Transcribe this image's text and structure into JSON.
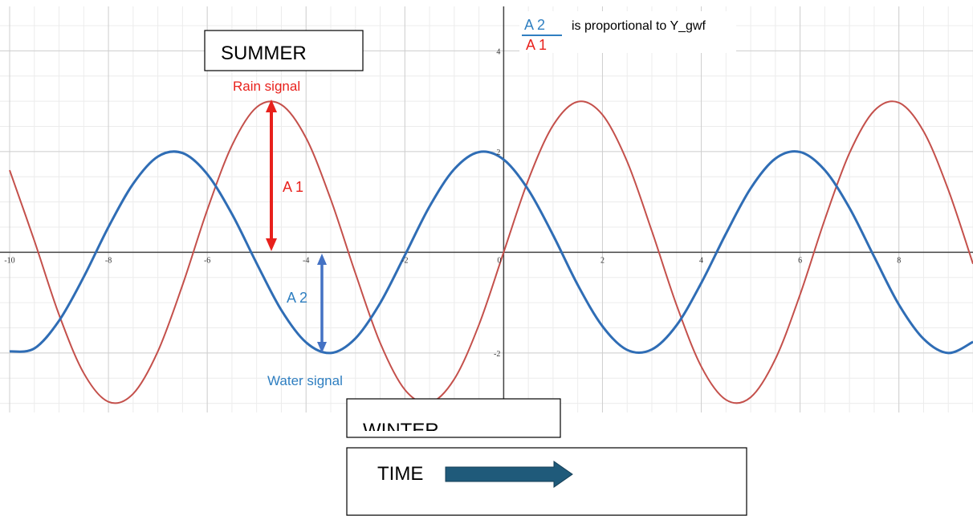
{
  "chart_data": {
    "type": "line",
    "x": [
      -10,
      -9.5,
      -9,
      -8.5,
      -8,
      -7.5,
      -7,
      -6.5,
      -6,
      -5.5,
      -5,
      -4.5,
      -4,
      -3.5,
      -3,
      -2.5,
      -2,
      -1.5,
      -1,
      -0.5,
      0,
      0.5,
      1,
      1.5,
      2,
      2.5,
      3,
      3.5,
      4,
      4.5,
      5,
      5.5,
      6,
      6.5,
      7,
      7.5,
      8,
      8.5,
      9,
      9.5
    ],
    "series": [
      {
        "name": "Rain signal",
        "color": "#c4504b",
        "values": [
          1.63,
          0.23,
          -1.24,
          -2.4,
          -2.97,
          -2.81,
          -1.97,
          -0.65,
          0.84,
          2.12,
          2.88,
          2.93,
          2.27,
          1.05,
          -0.42,
          -1.8,
          -2.73,
          -2.99,
          -2.52,
          -1.44,
          0,
          1.44,
          2.52,
          2.99,
          2.73,
          1.8,
          0.42,
          -1.05,
          -2.27,
          -2.93,
          -2.88,
          -2.12,
          -0.84,
          0.65,
          1.97,
          2.81,
          2.97,
          2.4,
          1.24,
          -0.23
        ]
      },
      {
        "name": "Water signal",
        "color": "#2f6db5",
        "values": [
          -1.97,
          -1.91,
          -1.36,
          -0.49,
          0.5,
          1.36,
          1.9,
          1.97,
          1.55,
          0.76,
          -0.22,
          -1.15,
          -1.79,
          -2,
          -1.71,
          -1.01,
          -0.06,
          0.91,
          1.65,
          1.99,
          1.84,
          1.24,
          0.34,
          -0.65,
          -1.47,
          -1.94,
          -1.93,
          -1.45,
          -0.61,
          0.37,
          1.27,
          1.86,
          1.99,
          1.63,
          0.88,
          -0.09,
          -1.04,
          -1.72,
          -2,
          -1.78
        ]
      }
    ],
    "xlim": [
      -10,
      9.5
    ],
    "ylim": [
      -3.15,
      4.85
    ],
    "xticks": [
      -10,
      -8,
      -6,
      -4,
      -2,
      0,
      2,
      4,
      6,
      8
    ],
    "yticks": [
      -2,
      2,
      4
    ],
    "grid": true,
    "annotations": {
      "summer": "SUMMER",
      "winter": "WINTER",
      "time": "TIME",
      "a1": "A 1",
      "a2": "A 2",
      "ratio_numerator": "A 2",
      "ratio_denominator": "A 1",
      "ratio_text": "is proportional to Y_gwf"
    }
  }
}
